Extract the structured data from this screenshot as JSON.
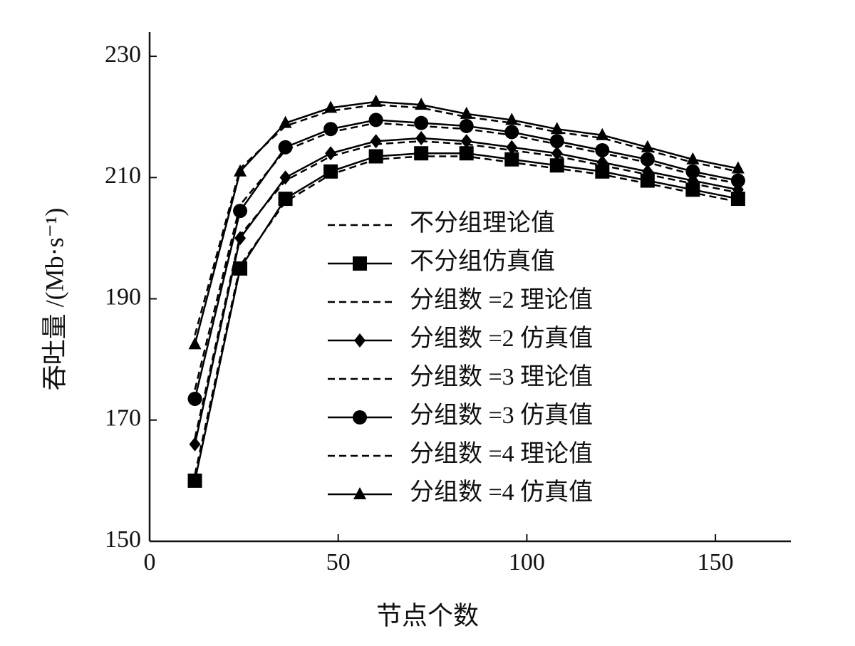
{
  "chart_data": {
    "type": "line",
    "x_label": "节点个数",
    "y_label": "吞吐量 /(Mb·s⁻¹)",
    "x": [
      12,
      24,
      36,
      48,
      60,
      72,
      84,
      96,
      108,
      120,
      132,
      144,
      156
    ],
    "xlim": [
      0,
      170
    ],
    "xticks": [
      0,
      50,
      100,
      150
    ],
    "ylim": [
      150,
      234
    ],
    "yticks": [
      150,
      170,
      190,
      210,
      230
    ],
    "series": [
      {
        "name": "不分组理论值",
        "color": "#000000",
        "linestyle": "dashed",
        "marker": "none",
        "values": [
          161,
          195.5,
          206,
          210.5,
          213,
          213.5,
          213.5,
          212.5,
          211.5,
          210.5,
          209,
          207.5,
          206
        ]
      },
      {
        "name": "不分组仿真值",
        "color": "#000000",
        "linestyle": "solid",
        "marker": "square",
        "values": [
          160,
          195,
          206.5,
          211,
          213.5,
          214,
          214,
          213,
          212,
          211,
          209.5,
          208,
          206.5
        ]
      },
      {
        "name": "分组数 =2 理论值",
        "color": "#000000",
        "linestyle": "dashed",
        "marker": "none",
        "values": [
          167,
          200.5,
          209.5,
          213.5,
          215.5,
          216,
          215.5,
          214.5,
          213.5,
          212,
          210.5,
          209,
          207.5
        ]
      },
      {
        "name": "分组数 =2 仿真值",
        "color": "#000000",
        "linestyle": "solid",
        "marker": "diamond",
        "values": [
          166,
          200,
          210,
          214,
          216,
          216.5,
          216,
          215,
          214,
          212.5,
          211,
          209.5,
          208
        ]
      },
      {
        "name": "分组数 =3 理论值",
        "color": "#000000",
        "linestyle": "dashed",
        "marker": "none",
        "values": [
          175,
          205.5,
          214.5,
          217.5,
          219,
          218.5,
          218,
          217,
          215.5,
          214,
          212.5,
          210.5,
          209
        ]
      },
      {
        "name": "分组数 =3 仿真值",
        "color": "#000000",
        "linestyle": "solid",
        "marker": "circle",
        "values": [
          173.5,
          204.5,
          215,
          218,
          219.5,
          219,
          218.5,
          217.5,
          216,
          214.5,
          213,
          211,
          209.5
        ]
      },
      {
        "name": "分组数 =4 理论值",
        "color": "#000000",
        "linestyle": "dashed",
        "marker": "none",
        "values": [
          184,
          211.5,
          218.5,
          221,
          222,
          221.5,
          220,
          219,
          217.5,
          216.5,
          214.5,
          212.5,
          211
        ]
      },
      {
        "name": "分组数 =4 仿真值",
        "color": "#000000",
        "linestyle": "solid",
        "marker": "triangle",
        "values": [
          182.5,
          211,
          219,
          221.5,
          222.5,
          222,
          220.5,
          219.5,
          218,
          217,
          215,
          213,
          211.5
        ]
      }
    ]
  }
}
